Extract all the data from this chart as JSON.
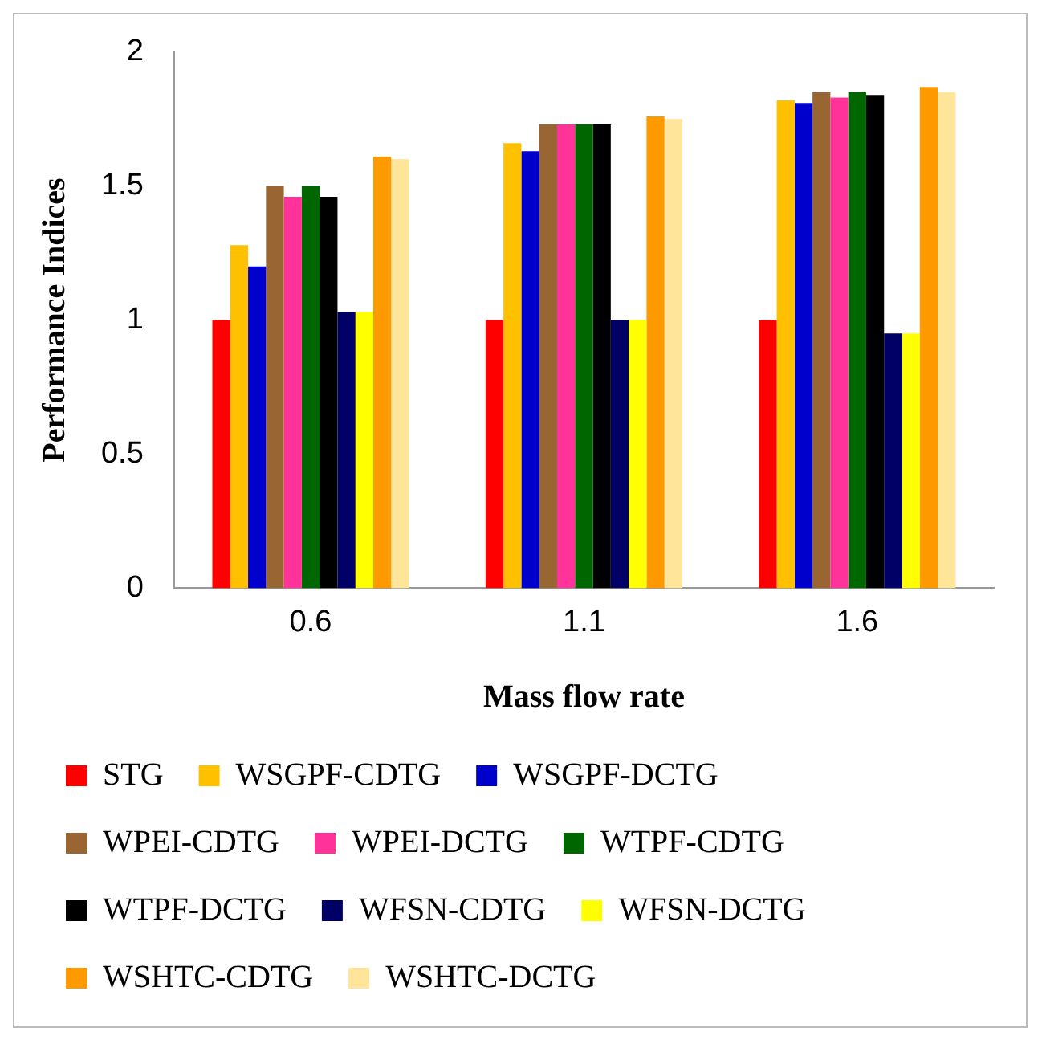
{
  "chart_data": {
    "type": "bar",
    "xlabel": "Mass flow rate",
    "ylabel": "Performance Indices",
    "categories": [
      "0.6",
      "1.1",
      "1.6"
    ],
    "series": [
      {
        "name": "STG",
        "color": "#ff0000",
        "values": [
          1.0,
          1.0,
          1.0
        ]
      },
      {
        "name": "WSGPF-CDTG",
        "color": "#ffc000",
        "values": [
          1.28,
          1.66,
          1.82
        ]
      },
      {
        "name": "WSGPF-DCTG",
        "color": "#0000cc",
        "values": [
          1.2,
          1.63,
          1.81
        ]
      },
      {
        "name": "WPEI-CDTG",
        "color": "#996633",
        "values": [
          1.5,
          1.73,
          1.85
        ]
      },
      {
        "name": "WPEI-DCTG",
        "color": "#ff3399",
        "values": [
          1.46,
          1.73,
          1.83
        ]
      },
      {
        "name": "WTPF-CDTG",
        "color": "#006600",
        "values": [
          1.5,
          1.73,
          1.85
        ]
      },
      {
        "name": "WTPF-DCTG",
        "color": "#000000",
        "values": [
          1.46,
          1.73,
          1.84
        ]
      },
      {
        "name": "WFSN-CDTG",
        "color": "#000066",
        "values": [
          1.03,
          1.0,
          0.95
        ]
      },
      {
        "name": "WFSN-DCTG",
        "color": "#ffff00",
        "values": [
          1.03,
          1.0,
          0.95
        ]
      },
      {
        "name": "WSHTC-CDTG",
        "color": "#ff9900",
        "values": [
          1.61,
          1.76,
          1.87
        ]
      },
      {
        "name": "WSHTC-DCTG",
        "color": "#ffe599",
        "values": [
          1.6,
          1.75,
          1.85
        ]
      }
    ],
    "ylim": [
      0,
      2
    ],
    "yticks": [
      0,
      0.5,
      1,
      1.5,
      2
    ],
    "grid": false,
    "legend": "bottom"
  }
}
